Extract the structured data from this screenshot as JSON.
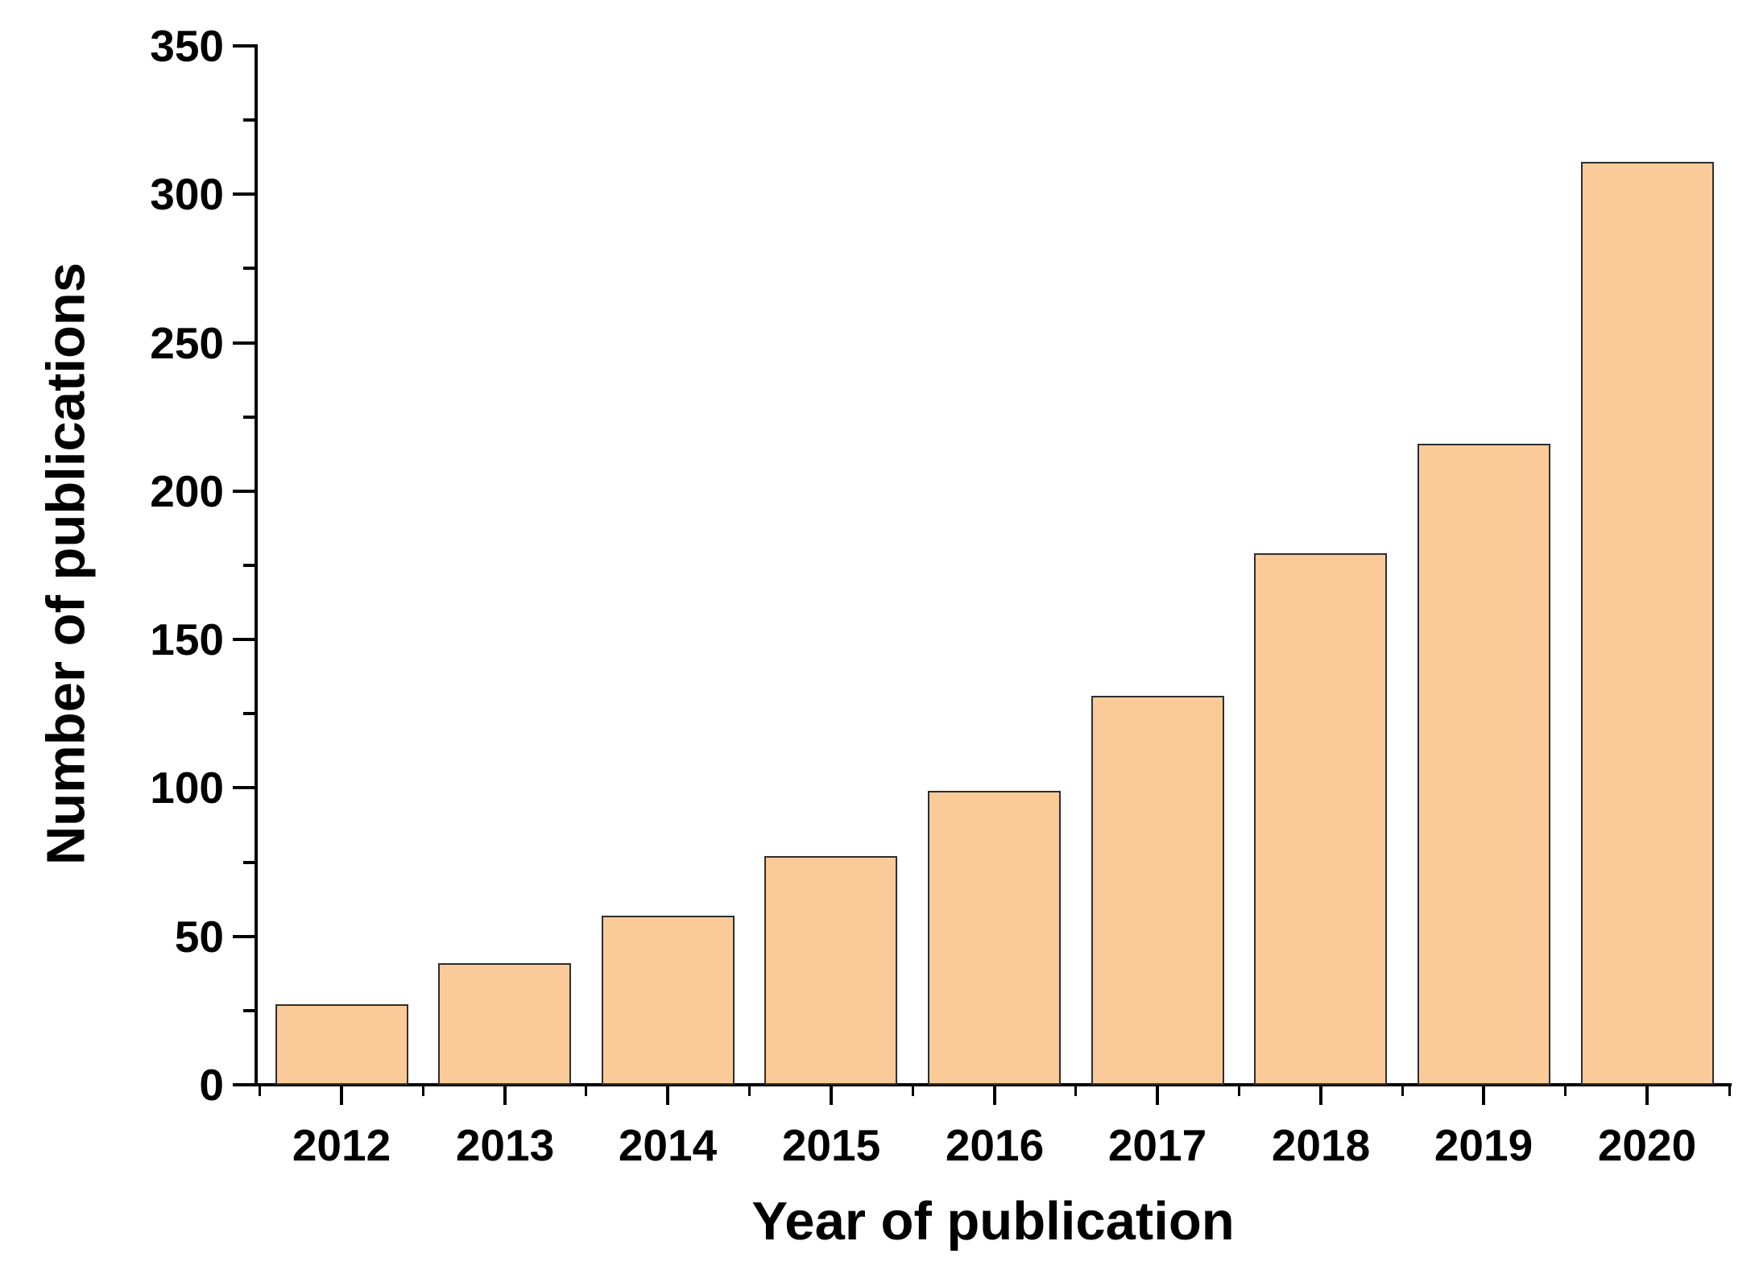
{
  "chart_data": {
    "type": "bar",
    "title": "",
    "categories": [
      "2012",
      "2013",
      "2014",
      "2015",
      "2016",
      "2017",
      "2018",
      "2019",
      "2020"
    ],
    "values": [
      27,
      41,
      57,
      77,
      99,
      131,
      179,
      216,
      311
    ],
    "xlabel": "Year of publication",
    "ylabel": "Number of publications",
    "ylim": [
      0,
      350
    ],
    "yticks": [
      0,
      50,
      100,
      150,
      200,
      250,
      300,
      350
    ],
    "yminor_ticks": [
      25,
      75,
      125,
      175,
      225,
      275,
      325
    ],
    "grid": false,
    "legend": false,
    "bar_color": "#FACA98",
    "bar_border_color": "#2E2E2E",
    "axis_color": "#000000",
    "text_color": "#000000",
    "background_color": "#FFFFFF"
  }
}
